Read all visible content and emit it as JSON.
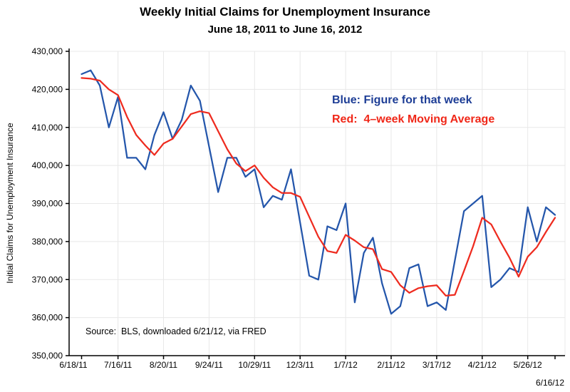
{
  "chart_data": {
    "type": "line",
    "title": "Weekly Initial Claims for Unemployment Insurance",
    "subtitle": "June 18, 2011 to June 16, 2012",
    "ylabel": "Initial Claims for Unemployment Insurance",
    "source_note": "Source:  BLS, downloaded 6/21/12, via FRED",
    "x_start_date": "6/18/11",
    "x_end_date": "6/16/12",
    "weeks_total": 52,
    "ylim": [
      350000,
      430000
    ],
    "grid": true,
    "grid_color": "#e8e8e8",
    "axis_color": "#000000",
    "y_ticks": [
      {
        "value": 350000,
        "label": "350,000"
      },
      {
        "value": 360000,
        "label": "360,000"
      },
      {
        "value": 370000,
        "label": "370,000"
      },
      {
        "value": 380000,
        "label": "380,000"
      },
      {
        "value": 390000,
        "label": "390,000"
      },
      {
        "value": 400000,
        "label": "400,000"
      },
      {
        "value": 410000,
        "label": "410,000"
      },
      {
        "value": 420000,
        "label": "420,000"
      },
      {
        "value": 430000,
        "label": "430,000"
      }
    ],
    "x_ticks": [
      {
        "week": 0,
        "label": "6/18/11"
      },
      {
        "week": 4,
        "label": "7/16/11"
      },
      {
        "week": 9,
        "label": "8/20/11"
      },
      {
        "week": 14,
        "label": "9/24/11"
      },
      {
        "week": 19,
        "label": "10/29/11"
      },
      {
        "week": 24,
        "label": "12/3/11"
      },
      {
        "week": 29,
        "label": "1/7/12"
      },
      {
        "week": 34,
        "label": "2/11/12"
      },
      {
        "week": 39,
        "label": "3/17/12"
      },
      {
        "week": 44,
        "label": "4/21/12"
      },
      {
        "week": 49,
        "label": "5/26/12"
      },
      {
        "week": 52,
        "label": "6/16/12",
        "second_row": true
      }
    ],
    "legend": [
      {
        "text": "Blue: Figure for that week",
        "color": "#1E3E96"
      },
      {
        "text": "Red:  4–week Moving Average",
        "color": "#F02718"
      }
    ],
    "series": [
      {
        "name": "weekly_initial_claims",
        "color": "#2456AB",
        "values": [
          424000,
          425000,
          421000,
          410000,
          418000,
          402000,
          402000,
          399000,
          408000,
          414000,
          407000,
          412000,
          421000,
          417000,
          405000,
          393000,
          402000,
          402000,
          397000,
          399000,
          389000,
          392000,
          391000,
          399000,
          385000,
          371000,
          370000,
          384000,
          383000,
          390000,
          364000,
          377000,
          381000,
          369000,
          361000,
          363000,
          373000,
          374000,
          363000,
          364000,
          362000,
          375000,
          388000,
          390000,
          392000,
          368000,
          370000,
          373000,
          372000,
          389000,
          380000,
          389000,
          387000
        ]
      },
      {
        "name": "four_week_moving_average",
        "color": "#EE2B1F",
        "values": [
          423000,
          422800,
          422300,
          420000,
          418500,
          412750,
          408000,
          405250,
          402750,
          405750,
          407000,
          410250,
          413500,
          414250,
          413750,
          409000,
          404250,
          400500,
          398500,
          400000,
          396750,
          394250,
          392750,
          392750,
          391750,
          386500,
          381250,
          377500,
          377000,
          381750,
          380250,
          378500,
          378000,
          372750,
          372000,
          368500,
          366500,
          367750,
          368250,
          368500,
          365750,
          366000,
          372250,
          378750,
          386250,
          384500,
          380000,
          375750,
          370750,
          376000,
          378500,
          382500,
          386250
        ]
      }
    ]
  }
}
